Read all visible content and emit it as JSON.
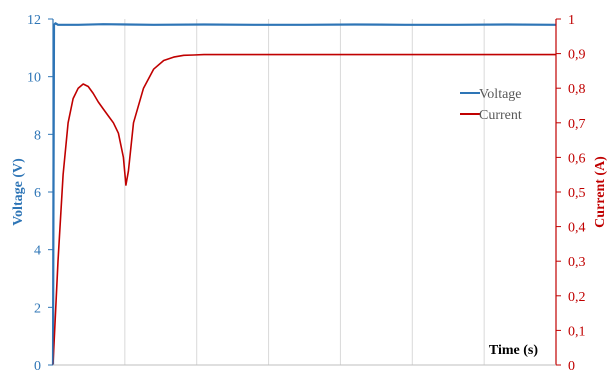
{
  "chart_data": {
    "type": "line",
    "title": "",
    "xlabel": "Time (s)",
    "ylabel_left": "Voltage (V)",
    "ylabel_right": "Current (A)",
    "y_left": {
      "min": 0,
      "max": 12,
      "ticks": [
        "0",
        "2",
        "4",
        "6",
        "8",
        "10",
        "12"
      ]
    },
    "y_right": {
      "min": 0,
      "max": 1,
      "ticks": [
        "0",
        "0,1",
        "0,2",
        "0,3",
        "0,4",
        "0,5",
        "0,6",
        "0,7",
        "0,8",
        "0,9",
        "1"
      ]
    },
    "x_range": [
      0,
      100
    ],
    "x_tick_labels_shown": false,
    "grid": {
      "vertical": true,
      "horizontal": false
    },
    "legend": {
      "placement": "right",
      "items": [
        {
          "label": "Voltage",
          "color": "#2e75b6"
        },
        {
          "label": "Current",
          "color": "#c00000"
        }
      ]
    },
    "series": [
      {
        "name": "Voltage",
        "axis": "left",
        "color": "#2e75b6",
        "x": [
          0,
          0.2,
          0.5,
          1,
          5,
          10,
          20,
          30,
          40,
          50,
          60,
          70,
          80,
          90,
          100
        ],
        "y": [
          0,
          11.8,
          11.85,
          11.8,
          11.8,
          11.82,
          11.8,
          11.81,
          11.8,
          11.8,
          11.81,
          11.8,
          11.8,
          11.81,
          11.8
        ]
      },
      {
        "name": "Current",
        "axis": "right",
        "color": "#c00000",
        "x": [
          0,
          1,
          2,
          3,
          4,
          5,
          6,
          7,
          8,
          9,
          10,
          11,
          12,
          13,
          14,
          14.5,
          15,
          16,
          18,
          20,
          22,
          24,
          26,
          28,
          30,
          35,
          40,
          50,
          60,
          70,
          80,
          90,
          100
        ],
        "y": [
          0,
          0.3,
          0.55,
          0.7,
          0.77,
          0.8,
          0.812,
          0.805,
          0.785,
          0.76,
          0.74,
          0.72,
          0.7,
          0.67,
          0.6,
          0.52,
          0.56,
          0.7,
          0.8,
          0.855,
          0.88,
          0.89,
          0.895,
          0.896,
          0.897,
          0.897,
          0.897,
          0.897,
          0.897,
          0.897,
          0.897,
          0.897,
          0.897
        ]
      }
    ]
  }
}
